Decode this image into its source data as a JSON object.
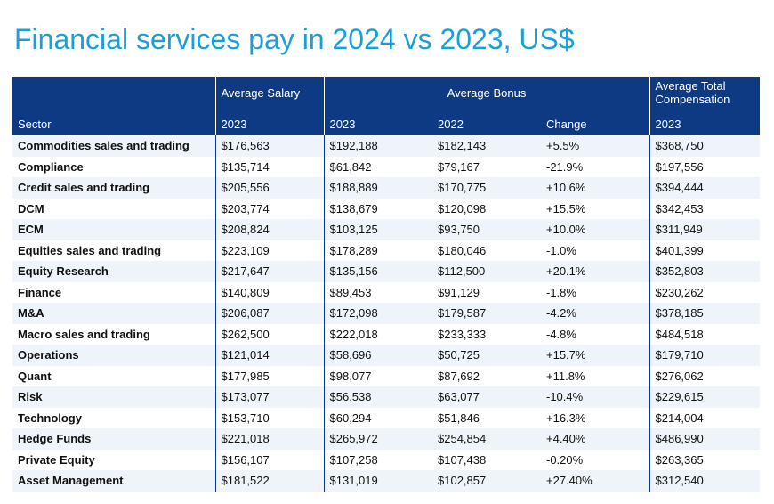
{
  "title": "Financial services pay in 2024 vs 2023, US$",
  "colors": {
    "title": "#1a9fd9",
    "header_bg": "#0d3a82",
    "stripe": "#eef4fa"
  },
  "table": {
    "group_headers": {
      "salary": "Average Salary",
      "bonus": "Average Bonus",
      "total": "Average Total Compensation"
    },
    "sub_headers": {
      "sector": "Sector",
      "salary_year": "2023",
      "bonus_2023": "2023",
      "bonus_2022": "2022",
      "change": "Change",
      "total_year": "2023"
    },
    "rows": [
      {
        "sector": "Commodities sales and trading",
        "salary": "$176,563",
        "bonus_2023": "$192,188",
        "bonus_2022": "$182,143",
        "change": "+5.5%",
        "total": "$368,750"
      },
      {
        "sector": "Compliance",
        "salary": "$135,714",
        "bonus_2023": "$61,842",
        "bonus_2022": "$79,167",
        "change": "-21.9%",
        "total": "$197,556"
      },
      {
        "sector": "Credit sales and trading",
        "salary": "$205,556",
        "bonus_2023": "$188,889",
        "bonus_2022": "$170,775",
        "change": "+10.6%",
        "total": "$394,444"
      },
      {
        "sector": "DCM",
        "salary": "$203,774",
        "bonus_2023": "$138,679",
        "bonus_2022": "$120,098",
        "change": "+15.5%",
        "total": "$342,453"
      },
      {
        "sector": "ECM",
        "salary": "$208,824",
        "bonus_2023": "$103,125",
        "bonus_2022": "$93,750",
        "change": "+10.0%",
        "total": "$311,949"
      },
      {
        "sector": "Equities sales and trading",
        "salary": "$223,109",
        "bonus_2023": "$178,289",
        "bonus_2022": "$180,046",
        "change": "-1.0%",
        "total": "$401,399"
      },
      {
        "sector": "Equity Research",
        "salary": "$217,647",
        "bonus_2023": "$135,156",
        "bonus_2022": "$112,500",
        "change": "+20.1%",
        "total": "$352,803"
      },
      {
        "sector": "Finance",
        "salary": "$140,809",
        "bonus_2023": "$89,453",
        "bonus_2022": "$91,129",
        "change": "-1.8%",
        "total": "$230,262"
      },
      {
        "sector": "M&A",
        "salary": "$206,087",
        "bonus_2023": "$172,098",
        "bonus_2022": "$179,587",
        "change": "-4.2%",
        "total": "$378,185"
      },
      {
        "sector": "Macro sales and trading",
        "salary": "$262,500",
        "bonus_2023": "$222,018",
        "bonus_2022": "$233,333",
        "change": "-4.8%",
        "total": "$484,518"
      },
      {
        "sector": "Operations",
        "salary": "$121,014",
        "bonus_2023": "$58,696",
        "bonus_2022": "$50,725",
        "change": "+15.7%",
        "total": "$179,710"
      },
      {
        "sector": "Quant",
        "salary": "$177,985",
        "bonus_2023": "$98,077",
        "bonus_2022": "$87,692",
        "change": "+11.8%",
        "total": "$276,062"
      },
      {
        "sector": "Risk",
        "salary": "$173,077",
        "bonus_2023": "$56,538",
        "bonus_2022": "$63,077",
        "change": "-10.4%",
        "total": "$229,615"
      },
      {
        "sector": "Technology",
        "salary": "$153,710",
        "bonus_2023": "$60,294",
        "bonus_2022": "$51,846",
        "change": "+16.3%",
        "total": "$214,004"
      },
      {
        "sector": "Hedge Funds",
        "salary": "$221,018",
        "bonus_2023": "$265,972",
        "bonus_2022": "$254,854",
        "change": "+4.40%",
        "total": "$486,990"
      },
      {
        "sector": "Private Equity",
        "salary": "$156,107",
        "bonus_2023": "$107,258",
        "bonus_2022": "$107,438",
        "change": "-0.20%",
        "total": "$263,365"
      },
      {
        "sector": "Asset Management",
        "salary": "$181,522",
        "bonus_2023": "$131,019",
        "bonus_2022": "$102,857",
        "change": "+27.40%",
        "total": "$312,540"
      }
    ]
  }
}
